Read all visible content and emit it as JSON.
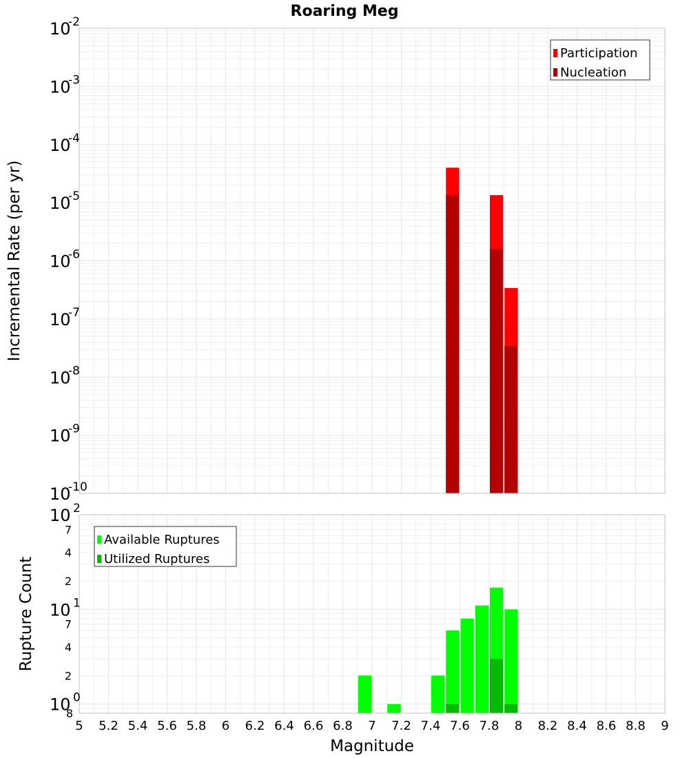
{
  "title": "Roaring Meg",
  "xlabel": "Magnitude",
  "chart_data": [
    {
      "type": "bar",
      "title": "Roaring Meg",
      "xlabel": "",
      "ylabel": "Incremental Rate (per yr)",
      "yscale": "log",
      "xlim": [
        5,
        9
      ],
      "ylim": [
        1e-10,
        0.01
      ],
      "bin_width": 0.1,
      "grid": true,
      "legend_position": "top-right",
      "x_ticks": [
        "5",
        "5.2",
        "5.4",
        "5.6",
        "5.8",
        "6",
        "6.2",
        "6.4",
        "6.6",
        "6.8",
        "7",
        "7.2",
        "7.4",
        "7.6",
        "7.8",
        "8",
        "8.2",
        "8.4",
        "8.6",
        "8.8",
        "9"
      ],
      "y_ticks": [
        {
          "base": "10",
          "exp": "-2"
        },
        {
          "base": "10",
          "exp": "-3"
        },
        {
          "base": "10",
          "exp": "-4"
        },
        {
          "base": "10",
          "exp": "-5"
        },
        {
          "base": "10",
          "exp": "-6"
        },
        {
          "base": "10",
          "exp": "-7"
        },
        {
          "base": "10",
          "exp": "-8"
        },
        {
          "base": "10",
          "exp": "-9"
        },
        {
          "base": "10",
          "exp": "-10"
        }
      ],
      "series": [
        {
          "name": "Participation",
          "color": "#ff0000",
          "x": [
            7.55,
            7.85,
            7.95
          ],
          "values": [
            4e-05,
            1.35e-05,
            3.4e-07
          ]
        },
        {
          "name": "Nucleation",
          "color": "#b30000",
          "x": [
            7.55,
            7.85,
            7.95
          ],
          "values": [
            1.35e-05,
            1.6e-06,
            3.4e-08
          ]
        }
      ]
    },
    {
      "type": "bar",
      "title": "",
      "xlabel": "Magnitude",
      "ylabel": "Rupture Count",
      "yscale": "log",
      "xlim": [
        5,
        9
      ],
      "ylim": [
        0.8,
        100
      ],
      "bin_width": 0.1,
      "grid": true,
      "legend_position": "top-left",
      "x_ticks": [
        "5",
        "5.2",
        "5.4",
        "5.6",
        "5.8",
        "6",
        "6.2",
        "6.4",
        "6.6",
        "6.8",
        "7",
        "7.2",
        "7.4",
        "7.6",
        "7.8",
        "8",
        "8.2",
        "8.4",
        "8.6",
        "8.8",
        "9"
      ],
      "y_major_ticks": [
        {
          "value": 100,
          "base": "10",
          "exp": "2"
        },
        {
          "value": 10,
          "base": "10",
          "exp": "1"
        },
        {
          "value": 1,
          "base": "10",
          "exp": "0"
        }
      ],
      "y_minor_ticks": [
        {
          "value": 70,
          "label": "7"
        },
        {
          "value": 40,
          "label": "4"
        },
        {
          "value": 20,
          "label": "2"
        },
        {
          "value": 7,
          "label": "7"
        },
        {
          "value": 4,
          "label": "4"
        },
        {
          "value": 2,
          "label": "2"
        },
        {
          "value": 0.8,
          "label": "8"
        }
      ],
      "series": [
        {
          "name": "Available Ruptures",
          "color": "#00ff00",
          "x": [
            6.95,
            7.15,
            7.45,
            7.55,
            7.65,
            7.75,
            7.85,
            7.95
          ],
          "values": [
            2,
            1,
            2,
            6,
            8,
            11,
            17,
            10
          ]
        },
        {
          "name": "Utilized Ruptures",
          "color": "#00bb00",
          "x": [
            7.55,
            7.85,
            7.95
          ],
          "values": [
            1,
            3,
            1
          ]
        }
      ]
    }
  ]
}
